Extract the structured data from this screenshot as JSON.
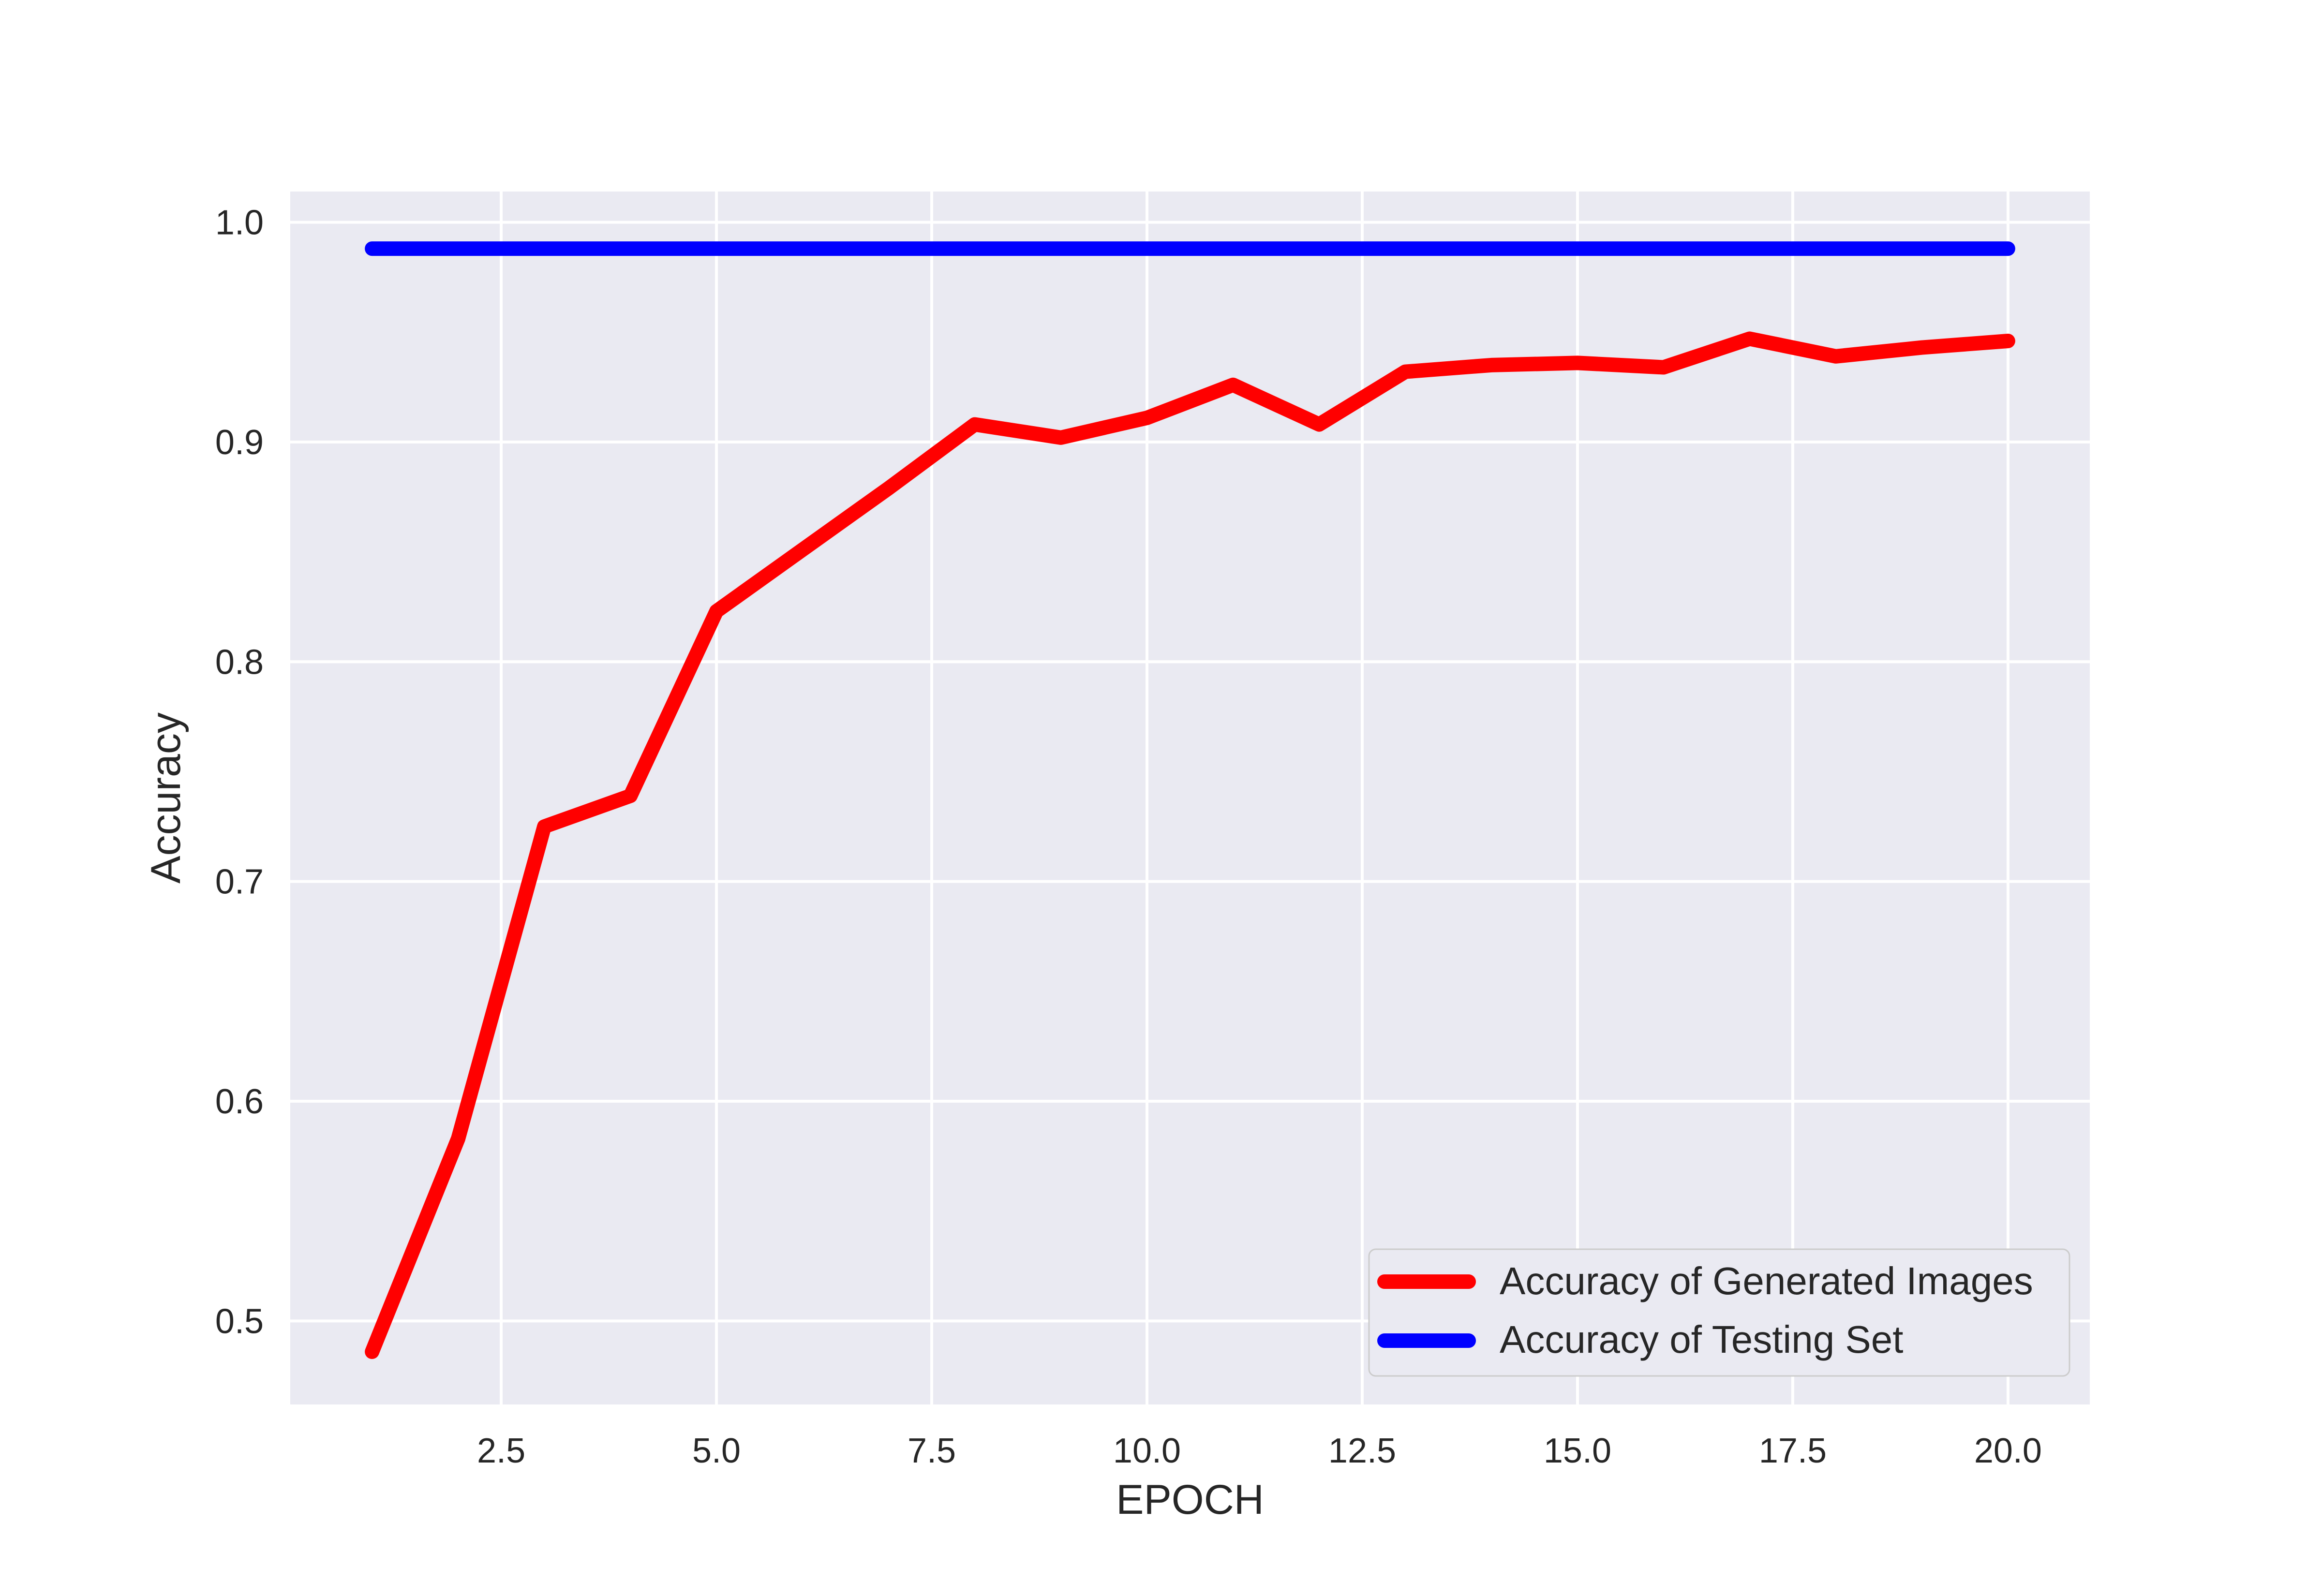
{
  "chart_data": {
    "type": "line",
    "title": "",
    "xlabel": "EPOCH",
    "ylabel": "Accuracy",
    "xlim": [
      0.05,
      20.95
    ],
    "ylim": [
      0.462,
      1.014
    ],
    "x_ticks": [
      2.5,
      5.0,
      7.5,
      10.0,
      12.5,
      15.0,
      17.5,
      20.0
    ],
    "x_tick_labels": [
      "2.5",
      "5.0",
      "7.5",
      "10.0",
      "12.5",
      "15.0",
      "17.5",
      "20.0"
    ],
    "y_ticks": [
      0.5,
      0.6,
      0.7,
      0.8,
      0.9,
      1.0
    ],
    "y_tick_labels": [
      "0.5",
      "0.6",
      "0.7",
      "0.8",
      "0.9",
      "1.0"
    ],
    "grid": true,
    "background_color": "#EAEAF2",
    "grid_color": "#FFFFFF",
    "legend_position": "lower right",
    "x": [
      1,
      2,
      3,
      4,
      5,
      6,
      7,
      8,
      9,
      10,
      11,
      12,
      13,
      14,
      15,
      16,
      17,
      18,
      19,
      20
    ],
    "series": [
      {
        "name": "Accuracy of Generated Images",
        "color": "#FF0000",
        "values": [
          0.486,
          0.583,
          0.725,
          0.739,
          0.823,
          0.851,
          0.879,
          0.908,
          0.902,
          0.911,
          0.926,
          0.908,
          0.932,
          0.935,
          0.936,
          0.934,
          0.947,
          0.939,
          0.943,
          0.946
        ]
      },
      {
        "name": "Accuracy of Testing Set",
        "color": "#0000FF",
        "values": [
          0.988,
          0.988,
          0.988,
          0.988,
          0.988,
          0.988,
          0.988,
          0.988,
          0.988,
          0.988,
          0.988,
          0.988,
          0.988,
          0.988,
          0.988,
          0.988,
          0.988,
          0.988,
          0.988,
          0.988
        ]
      }
    ]
  }
}
